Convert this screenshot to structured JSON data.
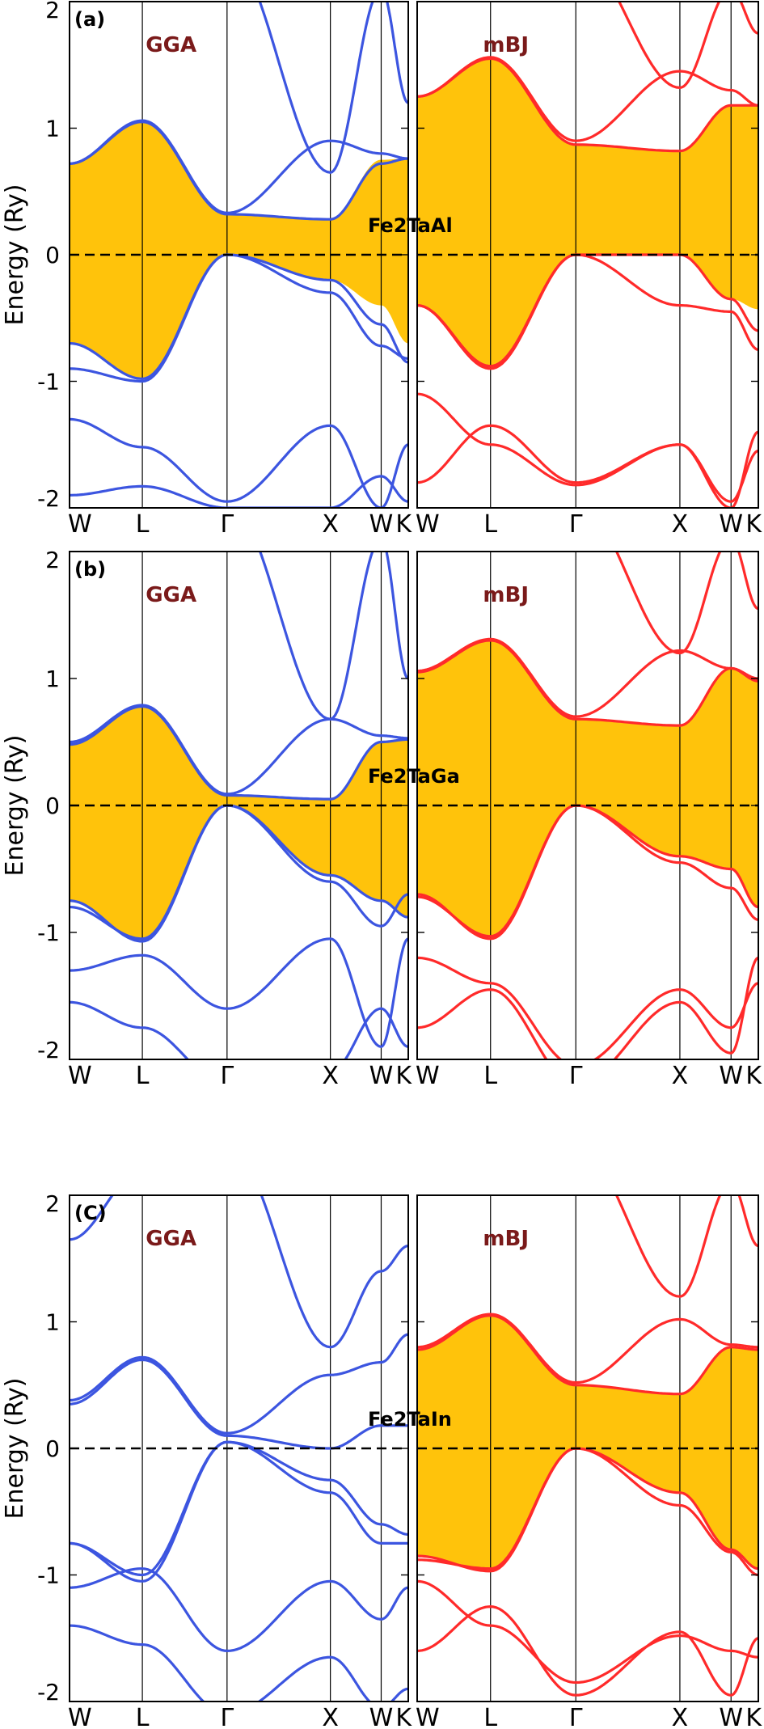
{
  "chart_data": [
    {
      "type": "line",
      "panel": "(a)",
      "material": "Fe2TaAl",
      "ylabel": "Energy (Ry)",
      "ylim": [
        -2,
        2
      ],
      "yticks": [
        "2",
        "1",
        "0",
        "-1",
        "-2"
      ],
      "kpoints": [
        "W",
        "L",
        "Γ",
        "X",
        "W",
        "K"
      ],
      "fermi_level": 0,
      "subplots": [
        {
          "method": "GGA",
          "color": "#3c55e0",
          "gap_fill": {
            "upper": [
              0.72,
              1.05,
              0.32,
              0.28,
              0.75,
              0.76
            ],
            "lower": [
              -0.7,
              -0.98,
              0.0,
              -0.2,
              -0.4,
              -0.7
            ]
          },
          "bands": [
            [
              -1.9,
              -1.83,
              -2.0,
              -2.0,
              -1.75,
              -1.95
            ],
            [
              -1.3,
              -1.52,
              -1.95,
              -1.35,
              -2.0,
              -1.5
            ],
            [
              -0.9,
              -1.0,
              0.0,
              -0.2,
              -0.55,
              -0.85
            ],
            [
              -0.7,
              -0.98,
              0.0,
              -0.3,
              -0.72,
              -0.82
            ],
            [
              0.72,
              1.05,
              0.32,
              0.28,
              0.72,
              0.76
            ],
            [
              0.72,
              1.06,
              0.33,
              0.9,
              0.8,
              0.76
            ],
            [
              2.4,
              2.2,
              2.4,
              0.65,
              2.1,
              1.2
            ]
          ]
        },
        {
          "method": "mBJ",
          "color": "#ff2a2a",
          "gap_fill": {
            "upper": [
              1.25,
              1.55,
              0.87,
              0.82,
              1.18,
              1.18
            ],
            "lower": [
              -0.4,
              -0.9,
              0.0,
              0.0,
              -0.35,
              -0.43
            ]
          },
          "bands": [
            [
              -1.8,
              -1.35,
              -1.8,
              -1.5,
              -2.0,
              -1.4
            ],
            [
              -1.1,
              -1.5,
              -1.82,
              -1.5,
              -1.95,
              -1.55
            ],
            [
              -0.4,
              -0.9,
              0.0,
              0.0,
              -0.35,
              -0.6
            ],
            [
              -0.4,
              -0.88,
              0.0,
              -0.4,
              -0.45,
              -0.75
            ],
            [
              1.25,
              1.55,
              0.87,
              0.82,
              1.18,
              1.18
            ],
            [
              1.25,
              1.56,
              0.9,
              1.45,
              1.3,
              1.18
            ],
            [
              2.4,
              2.3,
              2.4,
              1.32,
              2.1,
              1.75
            ]
          ]
        }
      ]
    },
    {
      "type": "line",
      "panel": "(b)",
      "material": "Fe2TaGa",
      "ylabel": "Energy (Ry)",
      "ylim": [
        -2,
        2
      ],
      "yticks": [
        "2",
        "1",
        "0",
        "-1",
        "-2"
      ],
      "kpoints": [
        "W",
        "L",
        "Γ",
        "X",
        "W",
        "K"
      ],
      "fermi_level": 0,
      "subplots": [
        {
          "method": "GGA",
          "color": "#3c55e0",
          "gap_fill": {
            "upper": [
              0.48,
              0.78,
              0.08,
              0.05,
              0.5,
              0.52
            ],
            "lower": [
              -0.75,
              -1.07,
              0.0,
              -0.55,
              -0.75,
              -0.88
            ]
          },
          "bands": [
            [
              -1.55,
              -1.75,
              -2.2,
              -2.1,
              -1.6,
              -1.9
            ],
            [
              -1.3,
              -1.18,
              -1.6,
              -1.05,
              -1.9,
              -1.05
            ],
            [
              -0.75,
              -1.07,
              0.0,
              -0.55,
              -0.75,
              -0.88
            ],
            [
              -0.8,
              -1.05,
              0.0,
              -0.6,
              -0.95,
              -0.7
            ],
            [
              0.48,
              0.78,
              0.08,
              0.05,
              0.5,
              0.52
            ],
            [
              0.5,
              0.79,
              0.09,
              0.68,
              0.55,
              0.53
            ],
            [
              2.4,
              2.2,
              2.4,
              0.68,
              2.1,
              1.0
            ]
          ]
        },
        {
          "method": "mBJ",
          "color": "#ff2a2a",
          "gap_fill": {
            "upper": [
              1.05,
              1.3,
              0.68,
              0.63,
              1.08,
              0.98
            ],
            "lower": [
              -0.7,
              -1.05,
              0.0,
              -0.4,
              -0.5,
              -0.8
            ]
          },
          "bands": [
            [
              -1.75,
              -1.45,
              -2.2,
              -1.55,
              -1.95,
              -1.2
            ],
            [
              -1.2,
              -1.4,
              -2.05,
              -1.45,
              -1.75,
              -1.4
            ],
            [
              -0.7,
              -1.05,
              0.0,
              -0.4,
              -0.5,
              -0.8
            ],
            [
              -0.72,
              -1.03,
              0.0,
              -0.45,
              -0.65,
              -0.9
            ],
            [
              1.05,
              1.3,
              0.68,
              0.63,
              1.08,
              0.98
            ],
            [
              1.06,
              1.31,
              0.7,
              1.22,
              1.08,
              1.0
            ],
            [
              2.4,
              2.3,
              2.4,
              1.2,
              2.1,
              1.55
            ]
          ]
        }
      ]
    },
    {
      "type": "line",
      "panel": "(C)",
      "material": "Fe2TaIn",
      "ylabel": "Energy (Ry)",
      "ylim": [
        -2,
        2
      ],
      "yticks": [
        "2",
        "1",
        "0",
        "-1",
        "-2"
      ],
      "kpoints": [
        "W",
        "L",
        "Γ",
        "X",
        "W",
        "K"
      ],
      "fermi_level": 0,
      "subplots": [
        {
          "method": "GGA",
          "color": "#3c55e0",
          "gap_fill": null,
          "bands": [
            [
              -1.4,
              -1.55,
              -2.1,
              -1.65,
              -2.05,
              -1.9
            ],
            [
              -1.1,
              -0.95,
              -1.6,
              -1.05,
              -1.35,
              -1.1
            ],
            [
              -0.75,
              -1.05,
              0.05,
              -0.35,
              -0.75,
              -0.75
            ],
            [
              -0.75,
              -1.0,
              0.05,
              -0.25,
              -0.6,
              -0.68
            ],
            [
              0.35,
              0.7,
              0.1,
              0.0,
              0.18,
              0.18
            ],
            [
              0.38,
              0.72,
              0.12,
              0.58,
              0.68,
              0.9
            ],
            [
              1.65,
              2.2,
              2.4,
              0.8,
              1.4,
              1.6
            ]
          ]
        },
        {
          "method": "mBJ",
          "color": "#ff2a2a",
          "gap_fill": {
            "upper": [
              0.78,
              1.05,
              0.5,
              0.43,
              0.8,
              0.78
            ],
            "lower": [
              -0.85,
              -0.97,
              0.0,
              -0.35,
              -0.8,
              -0.95
            ]
          },
          "bands": [
            [
              -1.6,
              -1.25,
              -1.95,
              -1.45,
              -1.95,
              -1.5
            ],
            [
              -1.05,
              -1.4,
              -1.85,
              -1.48,
              -1.6,
              -1.65
            ],
            [
              -0.85,
              -0.97,
              0.0,
              -0.35,
              -0.8,
              -0.95
            ],
            [
              -0.88,
              -0.95,
              0.0,
              -0.45,
              -0.82,
              -1.0
            ],
            [
              0.78,
              1.05,
              0.5,
              0.43,
              0.8,
              0.78
            ],
            [
              0.8,
              1.06,
              0.52,
              1.02,
              0.82,
              0.8
            ],
            [
              2.4,
              2.3,
              2.4,
              1.2,
              2.1,
              1.6
            ]
          ]
        }
      ]
    }
  ]
}
